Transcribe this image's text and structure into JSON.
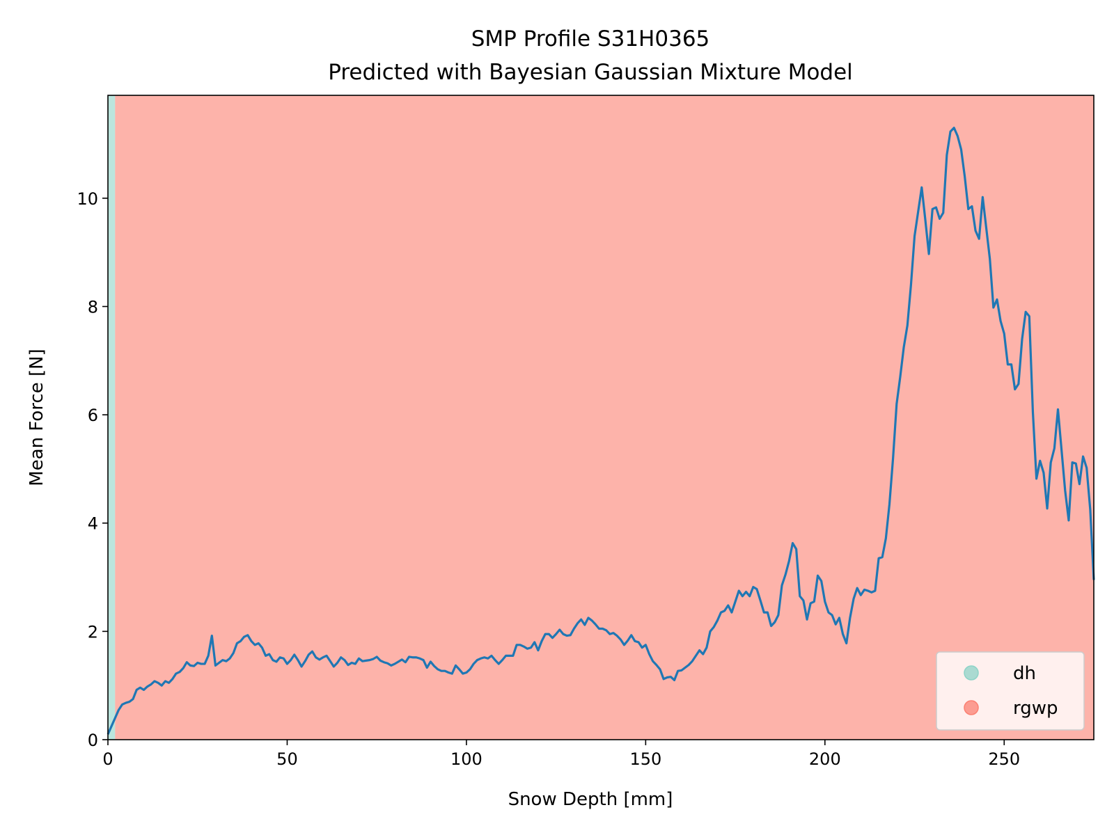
{
  "chart_data": {
    "type": "line",
    "title": "SMP Profile S31H0365",
    "subtitle": "Predicted with Bayesian Gaussian Mixture Model",
    "xlabel": "Snow Depth [mm]",
    "ylabel": "Mean Force [N]",
    "xlim": [
      0,
      275
    ],
    "ylim": [
      0,
      11.9
    ],
    "xticks": [
      0,
      50,
      100,
      150,
      200,
      250
    ],
    "yticks": [
      0,
      2,
      4,
      6,
      8,
      10
    ],
    "grid": false,
    "legend_position": "lower-right",
    "regions": [
      {
        "label": "dh",
        "start": 0,
        "end": 2,
        "color": "#8dd3c7"
      },
      {
        "label": "rgwp",
        "start": 2,
        "end": 275,
        "color": "#fb8072"
      }
    ],
    "legend": [
      {
        "label": "dh",
        "color": "#8dd3c7"
      },
      {
        "label": "rgwp",
        "color": "#fb8072"
      }
    ],
    "series": [
      {
        "color": "#1f77b4",
        "points": [
          [
            0,
            0.1
          ],
          [
            1,
            0.25
          ],
          [
            2,
            0.4
          ],
          [
            3,
            0.55
          ],
          [
            4,
            0.65
          ],
          [
            5,
            0.68
          ],
          [
            6,
            0.7
          ],
          [
            7,
            0.75
          ],
          [
            8,
            0.92
          ],
          [
            9,
            0.96
          ],
          [
            10,
            0.92
          ],
          [
            11,
            0.98
          ],
          [
            12,
            1.02
          ],
          [
            13,
            1.08
          ],
          [
            14,
            1.05
          ],
          [
            15,
            1.0
          ],
          [
            16,
            1.08
          ],
          [
            17,
            1.05
          ],
          [
            18,
            1.12
          ],
          [
            19,
            1.22
          ],
          [
            20,
            1.25
          ],
          [
            21,
            1.32
          ],
          [
            22,
            1.43
          ],
          [
            23,
            1.37
          ],
          [
            24,
            1.36
          ],
          [
            25,
            1.42
          ],
          [
            26,
            1.4
          ],
          [
            27,
            1.4
          ],
          [
            28,
            1.55
          ],
          [
            29,
            1.92
          ],
          [
            30,
            1.37
          ],
          [
            31,
            1.42
          ],
          [
            32,
            1.47
          ],
          [
            33,
            1.45
          ],
          [
            34,
            1.5
          ],
          [
            35,
            1.6
          ],
          [
            36,
            1.78
          ],
          [
            37,
            1.82
          ],
          [
            38,
            1.9
          ],
          [
            39,
            1.93
          ],
          [
            40,
            1.82
          ],
          [
            41,
            1.75
          ],
          [
            42,
            1.78
          ],
          [
            43,
            1.7
          ],
          [
            44,
            1.55
          ],
          [
            45,
            1.58
          ],
          [
            46,
            1.47
          ],
          [
            47,
            1.44
          ],
          [
            48,
            1.52
          ],
          [
            49,
            1.5
          ],
          [
            50,
            1.4
          ],
          [
            51,
            1.47
          ],
          [
            52,
            1.57
          ],
          [
            53,
            1.47
          ],
          [
            54,
            1.35
          ],
          [
            55,
            1.45
          ],
          [
            56,
            1.57
          ],
          [
            57,
            1.63
          ],
          [
            58,
            1.52
          ],
          [
            59,
            1.48
          ],
          [
            60,
            1.52
          ],
          [
            61,
            1.55
          ],
          [
            62,
            1.45
          ],
          [
            63,
            1.35
          ],
          [
            64,
            1.42
          ],
          [
            65,
            1.52
          ],
          [
            66,
            1.47
          ],
          [
            67,
            1.38
          ],
          [
            68,
            1.42
          ],
          [
            69,
            1.4
          ],
          [
            70,
            1.5
          ],
          [
            71,
            1.45
          ],
          [
            72,
            1.46
          ],
          [
            73,
            1.47
          ],
          [
            74,
            1.49
          ],
          [
            75,
            1.53
          ],
          [
            76,
            1.46
          ],
          [
            77,
            1.43
          ],
          [
            78,
            1.41
          ],
          [
            79,
            1.37
          ],
          [
            80,
            1.4
          ],
          [
            81,
            1.44
          ],
          [
            82,
            1.48
          ],
          [
            83,
            1.43
          ],
          [
            84,
            1.53
          ],
          [
            85,
            1.52
          ],
          [
            86,
            1.52
          ],
          [
            87,
            1.5
          ],
          [
            88,
            1.47
          ],
          [
            89,
            1.33
          ],
          [
            90,
            1.44
          ],
          [
            91,
            1.36
          ],
          [
            92,
            1.3
          ],
          [
            93,
            1.27
          ],
          [
            94,
            1.27
          ],
          [
            95,
            1.24
          ],
          [
            96,
            1.22
          ],
          [
            97,
            1.37
          ],
          [
            98,
            1.3
          ],
          [
            99,
            1.22
          ],
          [
            100,
            1.24
          ],
          [
            101,
            1.3
          ],
          [
            102,
            1.4
          ],
          [
            103,
            1.47
          ],
          [
            104,
            1.5
          ],
          [
            105,
            1.52
          ],
          [
            106,
            1.5
          ],
          [
            107,
            1.55
          ],
          [
            108,
            1.47
          ],
          [
            109,
            1.4
          ],
          [
            110,
            1.47
          ],
          [
            111,
            1.55
          ],
          [
            112,
            1.55
          ],
          [
            113,
            1.55
          ],
          [
            114,
            1.75
          ],
          [
            115,
            1.75
          ],
          [
            116,
            1.72
          ],
          [
            117,
            1.68
          ],
          [
            118,
            1.7
          ],
          [
            119,
            1.8
          ],
          [
            120,
            1.65
          ],
          [
            121,
            1.82
          ],
          [
            122,
            1.95
          ],
          [
            123,
            1.95
          ],
          [
            124,
            1.88
          ],
          [
            125,
            1.95
          ],
          [
            126,
            2.03
          ],
          [
            127,
            1.95
          ],
          [
            128,
            1.92
          ],
          [
            129,
            1.93
          ],
          [
            130,
            2.05
          ],
          [
            131,
            2.15
          ],
          [
            132,
            2.22
          ],
          [
            133,
            2.12
          ],
          [
            134,
            2.25
          ],
          [
            135,
            2.2
          ],
          [
            136,
            2.13
          ],
          [
            137,
            2.05
          ],
          [
            138,
            2.05
          ],
          [
            139,
            2.02
          ],
          [
            140,
            1.95
          ],
          [
            141,
            1.97
          ],
          [
            142,
            1.92
          ],
          [
            143,
            1.85
          ],
          [
            144,
            1.75
          ],
          [
            145,
            1.83
          ],
          [
            146,
            1.93
          ],
          [
            147,
            1.82
          ],
          [
            148,
            1.8
          ],
          [
            149,
            1.7
          ],
          [
            150,
            1.75
          ],
          [
            151,
            1.58
          ],
          [
            152,
            1.45
          ],
          [
            153,
            1.38
          ],
          [
            154,
            1.3
          ],
          [
            155,
            1.12
          ],
          [
            156,
            1.15
          ],
          [
            157,
            1.16
          ],
          [
            158,
            1.1
          ],
          [
            159,
            1.27
          ],
          [
            160,
            1.28
          ],
          [
            161,
            1.33
          ],
          [
            162,
            1.38
          ],
          [
            163,
            1.45
          ],
          [
            164,
            1.55
          ],
          [
            165,
            1.65
          ],
          [
            166,
            1.58
          ],
          [
            167,
            1.7
          ],
          [
            168,
            2.0
          ],
          [
            169,
            2.08
          ],
          [
            170,
            2.2
          ],
          [
            171,
            2.35
          ],
          [
            172,
            2.38
          ],
          [
            173,
            2.48
          ],
          [
            174,
            2.35
          ],
          [
            175,
            2.55
          ],
          [
            176,
            2.75
          ],
          [
            177,
            2.65
          ],
          [
            178,
            2.73
          ],
          [
            179,
            2.65
          ],
          [
            180,
            2.82
          ],
          [
            181,
            2.78
          ],
          [
            182,
            2.57
          ],
          [
            183,
            2.35
          ],
          [
            184,
            2.35
          ],
          [
            185,
            2.1
          ],
          [
            186,
            2.17
          ],
          [
            187,
            2.3
          ],
          [
            188,
            2.85
          ],
          [
            189,
            3.05
          ],
          [
            190,
            3.3
          ],
          [
            191,
            3.63
          ],
          [
            192,
            3.52
          ],
          [
            193,
            2.65
          ],
          [
            194,
            2.57
          ],
          [
            195,
            2.22
          ],
          [
            196,
            2.52
          ],
          [
            197,
            2.55
          ],
          [
            198,
            3.03
          ],
          [
            199,
            2.93
          ],
          [
            200,
            2.55
          ],
          [
            201,
            2.35
          ],
          [
            202,
            2.3
          ],
          [
            203,
            2.13
          ],
          [
            204,
            2.25
          ],
          [
            205,
            1.95
          ],
          [
            206,
            1.78
          ],
          [
            207,
            2.25
          ],
          [
            208,
            2.6
          ],
          [
            209,
            2.8
          ],
          [
            210,
            2.67
          ],
          [
            211,
            2.77
          ],
          [
            212,
            2.75
          ],
          [
            213,
            2.72
          ],
          [
            214,
            2.75
          ],
          [
            215,
            3.35
          ],
          [
            216,
            3.37
          ],
          [
            217,
            3.72
          ],
          [
            218,
            4.35
          ],
          [
            219,
            5.2
          ],
          [
            220,
            6.2
          ],
          [
            221,
            6.7
          ],
          [
            222,
            7.25
          ],
          [
            223,
            7.65
          ],
          [
            224,
            8.4
          ],
          [
            225,
            9.3
          ],
          [
            226,
            9.75
          ],
          [
            227,
            10.2
          ],
          [
            228,
            9.6
          ],
          [
            229,
            8.97
          ],
          [
            230,
            9.8
          ],
          [
            231,
            9.83
          ],
          [
            232,
            9.62
          ],
          [
            233,
            9.73
          ],
          [
            234,
            10.8
          ],
          [
            235,
            11.23
          ],
          [
            236,
            11.3
          ],
          [
            237,
            11.15
          ],
          [
            238,
            10.9
          ],
          [
            239,
            10.4
          ],
          [
            240,
            9.8
          ],
          [
            241,
            9.85
          ],
          [
            242,
            9.4
          ],
          [
            243,
            9.25
          ],
          [
            244,
            10.02
          ],
          [
            245,
            9.45
          ],
          [
            246,
            8.88
          ],
          [
            247,
            7.98
          ],
          [
            248,
            8.13
          ],
          [
            249,
            7.73
          ],
          [
            250,
            7.5
          ],
          [
            251,
            6.93
          ],
          [
            252,
            6.93
          ],
          [
            253,
            6.47
          ],
          [
            254,
            6.57
          ],
          [
            255,
            7.4
          ],
          [
            256,
            7.9
          ],
          [
            257,
            7.82
          ],
          [
            258,
            6.05
          ],
          [
            259,
            4.82
          ],
          [
            260,
            5.15
          ],
          [
            261,
            4.93
          ],
          [
            262,
            4.27
          ],
          [
            263,
            5.12
          ],
          [
            264,
            5.38
          ],
          [
            265,
            6.1
          ],
          [
            266,
            5.35
          ],
          [
            267,
            4.6
          ],
          [
            268,
            4.05
          ],
          [
            269,
            5.12
          ],
          [
            270,
            5.1
          ],
          [
            271,
            4.72
          ],
          [
            272,
            5.23
          ],
          [
            273,
            5.02
          ],
          [
            274,
            4.25
          ],
          [
            275,
            2.95
          ]
        ]
      }
    ]
  }
}
